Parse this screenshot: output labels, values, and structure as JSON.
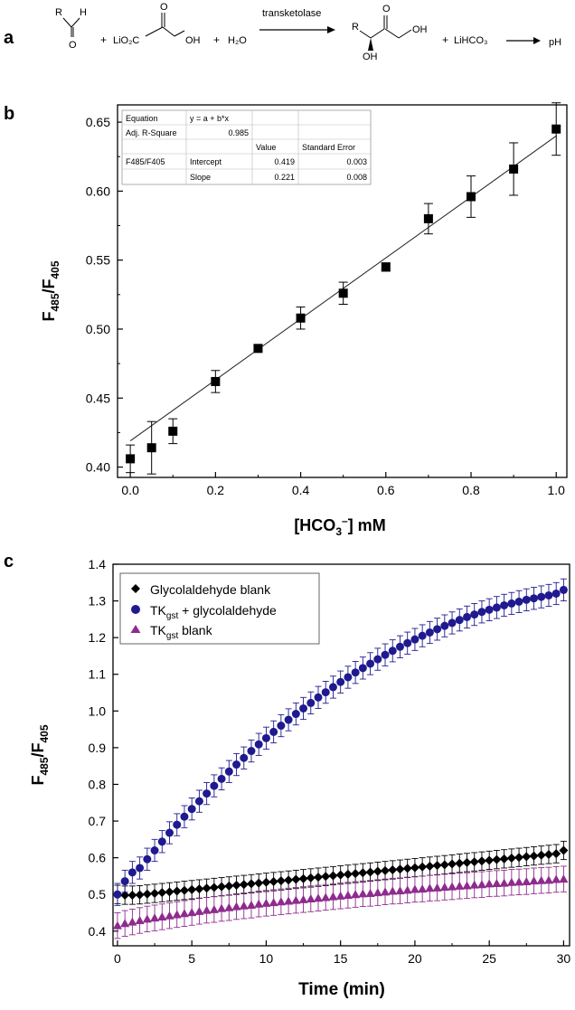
{
  "panel_a": {
    "label": "a",
    "reactant_aldehyde": "R",
    "aldehyde_h": "H",
    "aldehyde_o": "O",
    "plus1": "+",
    "hydroxypyruvate": "LiO₂C",
    "hp_carbonyl_o": "O",
    "hp_oh": "OH",
    "plus2": "+",
    "water": "H₂O",
    "arrow_label": "transketolase",
    "product_r": "R",
    "product_carbonyl_o": "O",
    "product_oh1": "OH",
    "product_oh2": "OH",
    "plus3": "+",
    "bicarbonate": "LiHCO₃",
    "result": "pH"
  },
  "panel_b": {
    "label": "b",
    "fit_table": {
      "rows": [
        [
          "Equation",
          "y = a + b*x",
          "",
          ""
        ],
        [
          "Adj. R-Square",
          "0.985",
          "",
          ""
        ],
        [
          "",
          "",
          "Value",
          "Standard Error"
        ],
        [
          "F485/F405",
          "Intercept",
          "0.419",
          "0.003"
        ],
        [
          "",
          "Slope",
          "0.221",
          "0.008"
        ]
      ]
    }
  },
  "chart_data": [
    {
      "type": "scatter",
      "panel": "b",
      "xlabel": "[HCO3−] mM",
      "ylabel": "F485/F405",
      "xlim": [
        0.0,
        1.0
      ],
      "ylim": [
        0.4,
        0.65
      ],
      "xticks": [
        "0.0",
        "0.2",
        "0.4",
        "0.6",
        "0.8",
        "1.0"
      ],
      "yticks": [
        "0.40",
        "0.45",
        "0.50",
        "0.55",
        "0.60",
        "0.65"
      ],
      "grid": false,
      "marker": "square",
      "x": [
        0.0,
        0.05,
        0.1,
        0.2,
        0.3,
        0.4,
        0.5,
        0.6,
        0.7,
        0.8,
        0.9,
        1.0
      ],
      "y": [
        0.406,
        0.414,
        0.426,
        0.462,
        0.486,
        0.508,
        0.526,
        0.545,
        0.58,
        0.596,
        0.616,
        0.645
      ],
      "yerr": [
        0.01,
        0.019,
        0.009,
        0.008,
        0.002,
        0.008,
        0.008,
        0.003,
        0.011,
        0.015,
        0.019,
        0.019
      ],
      "fit": {
        "intercept": 0.419,
        "slope": 0.221
      }
    },
    {
      "type": "scatter",
      "panel": "c",
      "xlabel": "Time (min)",
      "ylabel": "F485/F405",
      "xlim": [
        0,
        30
      ],
      "ylim": [
        0.4,
        1.4
      ],
      "xticks": [
        "0",
        "5",
        "10",
        "15",
        "20",
        "25",
        "30"
      ],
      "yticks": [
        "0.4",
        "0.5",
        "0.6",
        "0.7",
        "0.8",
        "0.9",
        "1.0",
        "1.1",
        "1.2",
        "1.3",
        "1.4"
      ],
      "grid": false,
      "legend_position": "top-left",
      "x": [
        0,
        0.5,
        1,
        1.5,
        2,
        2.5,
        3,
        3.5,
        4,
        4.5,
        5,
        5.5,
        6,
        6.5,
        7,
        7.5,
        8,
        8.5,
        9,
        9.5,
        10,
        10.5,
        11,
        11.5,
        12,
        12.5,
        13,
        13.5,
        14,
        14.5,
        15,
        15.5,
        16,
        16.5,
        17,
        17.5,
        18,
        18.5,
        19,
        19.5,
        20,
        20.5,
        21,
        21.5,
        22,
        22.5,
        23,
        23.5,
        24,
        24.5,
        25,
        25.5,
        26,
        26.5,
        27,
        27.5,
        28,
        28.5,
        29,
        29.5,
        30
      ],
      "series": [
        {
          "name": "Glycolaldehyde blank",
          "marker": "diamond",
          "color": "#000000",
          "y": [
            0.5,
            0.498,
            0.498,
            0.499,
            0.501,
            0.503,
            0.505,
            0.507,
            0.509,
            0.511,
            0.513,
            0.515,
            0.517,
            0.519,
            0.521,
            0.523,
            0.525,
            0.527,
            0.529,
            0.531,
            0.533,
            0.535,
            0.537,
            0.539,
            0.541,
            0.543,
            0.545,
            0.547,
            0.549,
            0.551,
            0.553,
            0.555,
            0.557,
            0.559,
            0.561,
            0.563,
            0.565,
            0.567,
            0.569,
            0.571,
            0.573,
            0.575,
            0.577,
            0.579,
            0.581,
            0.583,
            0.585,
            0.587,
            0.589,
            0.591,
            0.593,
            0.595,
            0.597,
            0.599,
            0.601,
            0.603,
            0.605,
            0.607,
            0.609,
            0.611,
            0.62
          ],
          "yerr": 0.025
        },
        {
          "name": "TKgst + glycolaldehyde",
          "marker": "circle",
          "color": "#1f1a8f",
          "y": [
            0.5,
            0.536,
            0.56,
            0.572,
            0.596,
            0.62,
            0.644,
            0.668,
            0.69,
            0.712,
            0.733,
            0.754,
            0.775,
            0.796,
            0.815,
            0.835,
            0.854,
            0.872,
            0.891,
            0.909,
            0.926,
            0.943,
            0.96,
            0.976,
            0.992,
            1.007,
            1.022,
            1.037,
            1.051,
            1.065,
            1.079,
            1.092,
            1.105,
            1.117,
            1.129,
            1.141,
            1.153,
            1.164,
            1.175,
            1.185,
            1.195,
            1.205,
            1.214,
            1.223,
            1.232,
            1.24,
            1.248,
            1.256,
            1.263,
            1.27,
            1.276,
            1.282,
            1.288,
            1.293,
            1.298,
            1.303,
            1.307,
            1.311,
            1.315,
            1.32,
            1.33
          ],
          "yerr": 0.03
        },
        {
          "name": "TKgst blank",
          "marker": "triangle",
          "color": "#8e2b8e",
          "y": [
            0.415,
            0.421,
            0.425,
            0.429,
            0.433,
            0.436,
            0.439,
            0.442,
            0.445,
            0.448,
            0.451,
            0.454,
            0.457,
            0.459,
            0.462,
            0.464,
            0.467,
            0.469,
            0.471,
            0.474,
            0.476,
            0.478,
            0.48,
            0.482,
            0.484,
            0.486,
            0.488,
            0.49,
            0.492,
            0.494,
            0.496,
            0.498,
            0.5,
            0.502,
            0.503,
            0.505,
            0.507,
            0.509,
            0.51,
            0.512,
            0.514,
            0.515,
            0.517,
            0.518,
            0.52,
            0.521,
            0.523,
            0.524,
            0.526,
            0.527,
            0.529,
            0.53,
            0.531,
            0.533,
            0.534,
            0.535,
            0.537,
            0.538,
            0.539,
            0.541,
            0.542
          ],
          "yerr": 0.035
        }
      ]
    }
  ],
  "panel_labels": {
    "b_ylabel_main": "F",
    "b_ylabel_sub1": "485",
    "b_ylabel_slash": "/F",
    "b_ylabel_sub2": "405",
    "b_xlabel_pre": "[HCO",
    "b_xlabel_sub": "3",
    "b_xlabel_sup": "–",
    "b_xlabel_post": "] mM",
    "c_label": "c",
    "c_ylabel_main": "F",
    "c_ylabel_sub1": "485",
    "c_ylabel_slash": "/F",
    "c_ylabel_sub2": "405",
    "c_xlabel": "Time (min)",
    "legend": [
      {
        "pre": "Glycolaldehyde blank",
        "sub": "",
        "post": ""
      },
      {
        "pre": "TK",
        "sub": "gst",
        "post": " + glycolaldehyde"
      },
      {
        "pre": "TK",
        "sub": "gst",
        "post": " blank"
      }
    ]
  }
}
